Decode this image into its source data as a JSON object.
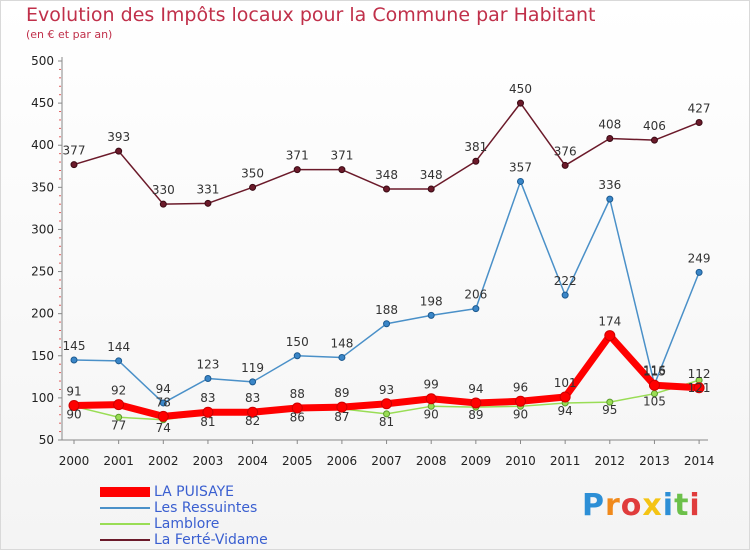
{
  "title": "Evolution des Impôts locaux pour la Commune par Habitant",
  "subtitle": "(en € et par an)",
  "logo_text": "Proxiti",
  "chart_data": {
    "type": "line",
    "title": "Evolution des Impôts locaux pour la Commune par Habitant",
    "subtitle": "(en € et par an)",
    "xlabel": "",
    "ylabel": "",
    "categories": [
      "2000",
      "2001",
      "2002",
      "2003",
      "2004",
      "2005",
      "2006",
      "2007",
      "2008",
      "2009",
      "2010",
      "2011",
      "2012",
      "2013",
      "2014"
    ],
    "ylim": [
      50,
      500
    ],
    "yticks": [
      50,
      100,
      150,
      200,
      250,
      300,
      350,
      400,
      450,
      500
    ],
    "grid": false,
    "legend_position": "bottom-left",
    "series": [
      {
        "name": "LA PUISAYE",
        "color": "#ff0000",
        "values": [
          91,
          92,
          78,
          83,
          83,
          88,
          89,
          93,
          99,
          94,
          96,
          101,
          174,
          115,
          112
        ],
        "labels_shown": true
      },
      {
        "name": "Les Ressuintes",
        "color": "#4a90c8",
        "values": [
          145,
          144,
          94,
          123,
          119,
          150,
          148,
          188,
          198,
          206,
          357,
          222,
          336,
          116,
          249
        ],
        "labels_shown": true
      },
      {
        "name": "Lamblore",
        "color": "#99dd55",
        "values": [
          90,
          77,
          74,
          81,
          82,
          86,
          87,
          81,
          90,
          89,
          90,
          94,
          95,
          105,
          121
        ],
        "labels_shown": true
      },
      {
        "name": "La Ferté-Vidame",
        "color": "#6b1a2a",
        "values": [
          377,
          393,
          330,
          331,
          350,
          371,
          371,
          348,
          348,
          381,
          450,
          376,
          408,
          406,
          427
        ],
        "labels_shown": true
      }
    ]
  }
}
